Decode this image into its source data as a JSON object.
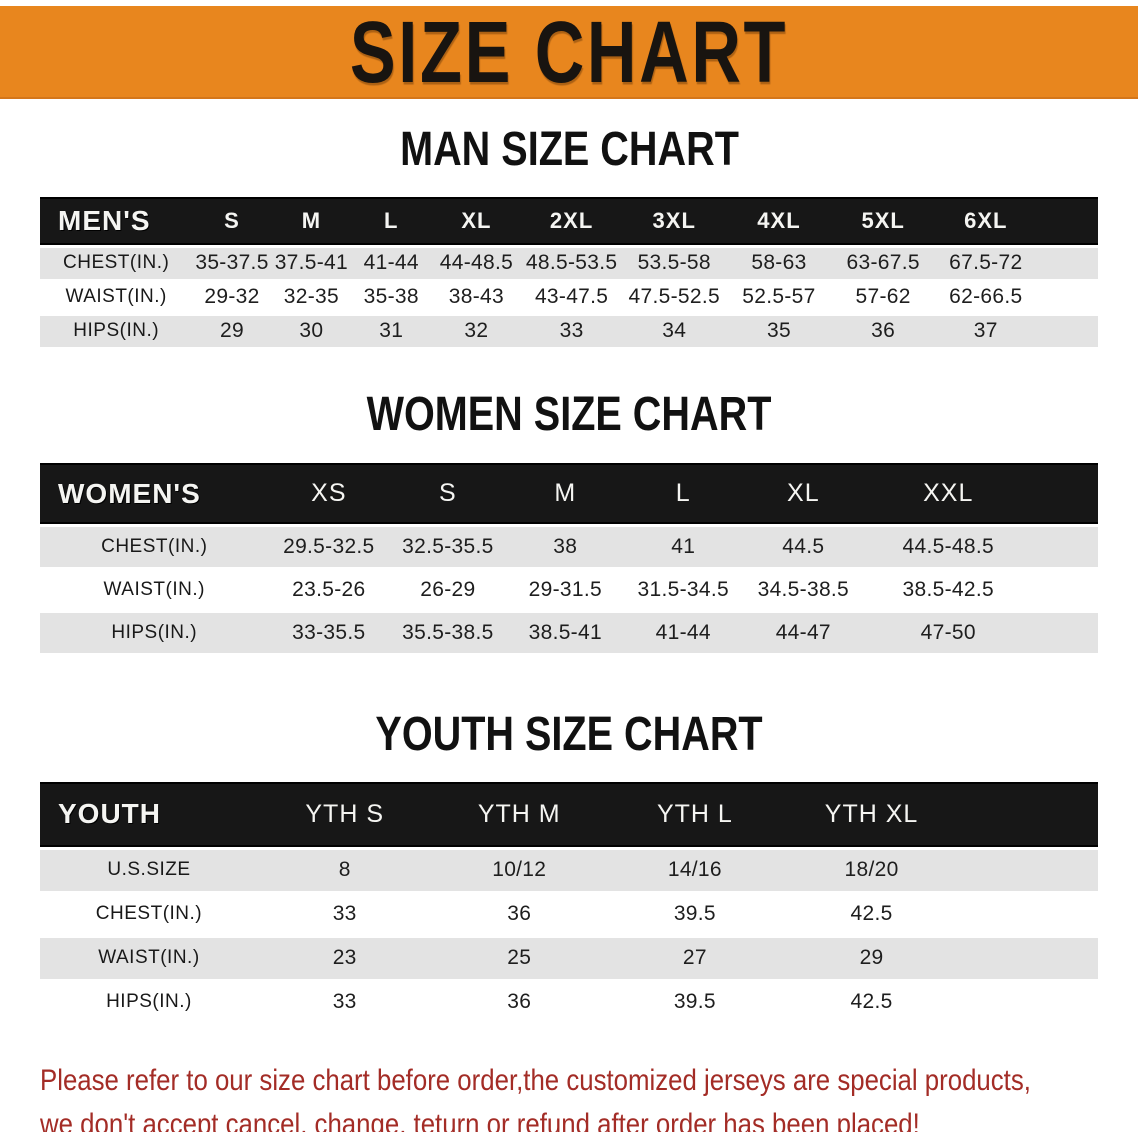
{
  "banner": {
    "title": "SIZE CHART"
  },
  "sections": [
    {
      "title": "MAN SIZE CHART",
      "table": {
        "corner_label": "MEN'S",
        "sizes": [
          "S",
          "M",
          "L",
          "XL",
          "2XL",
          "3XL",
          "4XL",
          "5XL",
          "6XL"
        ],
        "rows": [
          {
            "label": "CHEST(IN.)",
            "values": [
              "35-37.5",
              "37.5-41",
              "41-44",
              "44-48.5",
              "48.5-53.5",
              "53.5-58",
              "58-63",
              "63-67.5",
              "67.5-72"
            ]
          },
          {
            "label": "WAIST(IN.)",
            "values": [
              "29-32",
              "32-35",
              "35-38",
              "38-43",
              "43-47.5",
              "47.5-52.5",
              "52.5-57",
              "57-62",
              "62-66.5"
            ]
          },
          {
            "label": "HIPS(IN.)",
            "values": [
              "29",
              "30",
              "31",
              "32",
              "33",
              "34",
              "35",
              "36",
              "37"
            ]
          }
        ]
      }
    },
    {
      "title": "WOMEN SIZE CHART",
      "table": {
        "corner_label": "WOMEN'S",
        "sizes": [
          "XS",
          "S",
          "M",
          "L",
          "XL",
          "XXL"
        ],
        "rows": [
          {
            "label": "CHEST(IN.)",
            "values": [
              "29.5-32.5",
              "32.5-35.5",
              "38",
              "41",
              "44.5",
              "44.5-48.5"
            ]
          },
          {
            "label": "WAIST(IN.)",
            "values": [
              "23.5-26",
              "26-29",
              "29-31.5",
              "31.5-34.5",
              "34.5-38.5",
              "38.5-42.5"
            ]
          },
          {
            "label": "HIPS(IN.)",
            "values": [
              "33-35.5",
              "35.5-38.5",
              "38.5-41",
              "41-44",
              "44-47",
              "47-50"
            ]
          }
        ]
      }
    },
    {
      "title": "YOUTH SIZE CHART",
      "table": {
        "corner_label": "YOUTH",
        "sizes": [
          "YTH S",
          "YTH M",
          "YTH L",
          "YTH XL"
        ],
        "rows": [
          {
            "label": "U.S.SIZE",
            "values": [
              "8",
              "10/12",
              "14/16",
              "18/20"
            ]
          },
          {
            "label": "CHEST(IN.)",
            "values": [
              "33",
              "36",
              "39.5",
              "42.5"
            ]
          },
          {
            "label": "WAIST(IN.)",
            "values": [
              "23",
              "25",
              "27",
              "29"
            ]
          },
          {
            "label": "HIPS(IN.)",
            "values": [
              "33",
              "36",
              "39.5",
              "42.5"
            ]
          }
        ]
      }
    }
  ],
  "disclaimer": {
    "line1": "Please refer to our size chart before order,the customized jerseys are special products,",
    "line2": "we don't accept cancel, change, teturn or refund after order has been placed!"
  },
  "colors": {
    "banner_bg": "#e8861e",
    "header_bg": "#171717",
    "row_alt_bg": "#e3e3e3",
    "disclaimer_text": "#a32c26"
  }
}
